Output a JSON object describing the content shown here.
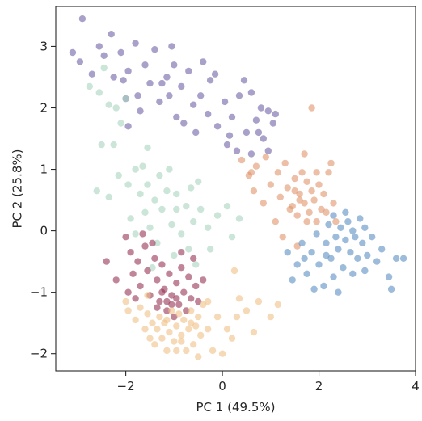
{
  "chart_data": {
    "type": "scatter",
    "title": "",
    "xlabel": "PC 1 (49.5%)",
    "ylabel": "PC 2 (25.8%)",
    "xlim": [
      -3.45,
      4.0
    ],
    "ylim": [
      -2.28,
      3.65
    ],
    "xticks": [
      -2,
      0,
      2,
      4
    ],
    "yticks": [
      -2,
      -1,
      0,
      1,
      2,
      3
    ],
    "xtick_labels": [
      "−2",
      "0",
      "2",
      "4"
    ],
    "ytick_labels": [
      "−2",
      "−1",
      "0",
      "1",
      "2",
      "3"
    ],
    "grid": false,
    "legend": "none",
    "marker_opacity": 0.6,
    "series": [
      {
        "color": "#6f62a6",
        "points": [
          [
            -2.9,
            3.45
          ],
          [
            -3.1,
            2.9
          ],
          [
            -2.95,
            2.75
          ],
          [
            -2.7,
            2.55
          ],
          [
            -2.45,
            2.85
          ],
          [
            -2.3,
            3.2
          ],
          [
            -2.25,
            2.5
          ],
          [
            -2.1,
            2.9
          ],
          [
            -2.05,
            2.45
          ],
          [
            -1.95,
            2.6
          ],
          [
            -1.8,
            3.05
          ],
          [
            -1.75,
            2.2
          ],
          [
            -1.6,
            2.7
          ],
          [
            -1.5,
            2.4
          ],
          [
            -1.4,
            2.95
          ],
          [
            -1.3,
            2.1
          ],
          [
            -1.15,
            2.5
          ],
          [
            -1.05,
            3.0
          ],
          [
            -1.1,
            2.2
          ],
          [
            -0.95,
            1.85
          ],
          [
            -0.85,
            2.35
          ],
          [
            -0.7,
            2.6
          ],
          [
            -0.6,
            2.05
          ],
          [
            -0.55,
            1.6
          ],
          [
            -0.45,
            2.2
          ],
          [
            -0.3,
            1.9
          ],
          [
            -0.25,
            2.45
          ],
          [
            -0.1,
            1.7
          ],
          [
            0.05,
            2.1
          ],
          [
            0.1,
            1.4
          ],
          [
            0.2,
            1.85
          ],
          [
            0.3,
            1.3
          ],
          [
            0.45,
            2.45
          ],
          [
            0.5,
            1.6
          ],
          [
            0.6,
            1.25
          ],
          [
            0.7,
            1.8
          ],
          [
            0.8,
            2.0
          ],
          [
            0.85,
            1.5
          ],
          [
            0.95,
            1.3
          ],
          [
            1.05,
            1.75
          ],
          [
            1.1,
            1.9
          ],
          [
            0.6,
            2.25
          ],
          [
            -2.55,
            3.0
          ],
          [
            -1.25,
            2.4
          ],
          [
            -0.15,
            2.55
          ],
          [
            0.35,
            2.2
          ],
          [
            0.75,
            1.6
          ],
          [
            -1.7,
            1.95
          ],
          [
            0.15,
            1.55
          ],
          [
            -0.8,
            1.75
          ],
          [
            -1.0,
            2.7
          ],
          [
            -2.0,
            2.15
          ],
          [
            -0.4,
            2.75
          ],
          [
            0.95,
            1.95
          ],
          [
            -1.95,
            1.7
          ]
        ]
      },
      {
        "color": "#e0946b",
        "points": [
          [
            0.4,
            1.15
          ],
          [
            0.55,
            0.9
          ],
          [
            0.7,
            1.05
          ],
          [
            0.9,
            1.2
          ],
          [
            1.0,
            0.75
          ],
          [
            1.15,
            0.95
          ],
          [
            1.2,
            0.55
          ],
          [
            1.3,
            1.1
          ],
          [
            1.35,
            0.7
          ],
          [
            1.45,
            0.4
          ],
          [
            1.5,
            0.85
          ],
          [
            1.55,
            0.25
          ],
          [
            1.6,
            0.6
          ],
          [
            1.7,
            0.45
          ],
          [
            1.75,
            0.8
          ],
          [
            1.8,
            0.3
          ],
          [
            1.85,
            0.65
          ],
          [
            1.9,
            0.5
          ],
          [
            1.95,
            0.15
          ],
          [
            2.0,
            0.75
          ],
          [
            2.05,
            0.35
          ],
          [
            2.1,
            0.6
          ],
          [
            2.2,
            0.95
          ],
          [
            2.3,
            0.45
          ],
          [
            2.35,
            0.15
          ],
          [
            1.65,
            0.95
          ],
          [
            1.4,
            0.35
          ],
          [
            1.1,
            0.15
          ],
          [
            0.65,
            0.65
          ],
          [
            0.85,
            0.45
          ],
          [
            1.25,
            -0.1
          ],
          [
            1.55,
            -0.25
          ],
          [
            1.85,
            2.0
          ],
          [
            1.7,
            1.25
          ],
          [
            2.25,
            1.1
          ],
          [
            0.6,
            0.95
          ],
          [
            1.95,
            0.95
          ],
          [
            1.6,
            0.5
          ],
          [
            1.75,
            0.15
          ],
          [
            2.15,
            0.3
          ],
          [
            1.5,
            0.65
          ]
        ]
      },
      {
        "color": "#5b8ec2",
        "points": [
          [
            1.35,
            -0.35
          ],
          [
            1.55,
            -0.55
          ],
          [
            1.65,
            -0.2
          ],
          [
            1.75,
            -0.7
          ],
          [
            1.85,
            -0.35
          ],
          [
            1.95,
            -0.05
          ],
          [
            2.0,
            -0.55
          ],
          [
            2.1,
            -0.9
          ],
          [
            2.15,
            -0.2
          ],
          [
            2.2,
            0.1
          ],
          [
            2.25,
            -0.45
          ],
          [
            2.3,
            0.25
          ],
          [
            2.35,
            -0.1
          ],
          [
            2.4,
            -0.3
          ],
          [
            2.45,
            0.05
          ],
          [
            2.5,
            -0.6
          ],
          [
            2.55,
            -0.15
          ],
          [
            2.6,
            0.15
          ],
          [
            2.65,
            -0.35
          ],
          [
            2.7,
            0.0
          ],
          [
            2.75,
            -0.1
          ],
          [
            2.8,
            -0.45
          ],
          [
            2.85,
            0.2
          ],
          [
            2.9,
            -0.2
          ],
          [
            2.95,
            0.05
          ],
          [
            3.0,
            -0.4
          ],
          [
            3.1,
            -0.1
          ],
          [
            3.2,
            -0.5
          ],
          [
            3.3,
            -0.3
          ],
          [
            3.45,
            -0.75
          ],
          [
            3.6,
            -0.45
          ],
          [
            3.75,
            -0.45
          ],
          [
            3.5,
            -0.95
          ],
          [
            2.4,
            -1.0
          ],
          [
            1.9,
            -0.95
          ],
          [
            1.45,
            -0.8
          ],
          [
            2.55,
            0.3
          ],
          [
            2.3,
            -0.75
          ],
          [
            2.7,
            -0.7
          ],
          [
            2.95,
            -0.65
          ],
          [
            2.15,
            -0.4
          ],
          [
            1.7,
            -0.45
          ]
        ]
      },
      {
        "color": "#a9d3c0",
        "points": [
          [
            -2.45,
            2.65
          ],
          [
            -2.75,
            2.35
          ],
          [
            -2.55,
            2.25
          ],
          [
            -2.2,
            2.0
          ],
          [
            -2.1,
            1.75
          ],
          [
            -2.5,
            1.4
          ],
          [
            -2.6,
            0.65
          ],
          [
            -2.35,
            0.55
          ],
          [
            -2.15,
            0.9
          ],
          [
            -1.95,
            0.75
          ],
          [
            -1.8,
            1.0
          ],
          [
            -1.7,
            0.6
          ],
          [
            -1.6,
            0.3
          ],
          [
            -1.55,
            0.75
          ],
          [
            -1.5,
            0.05
          ],
          [
            -1.4,
            0.5
          ],
          [
            -1.35,
            -0.2
          ],
          [
            -1.25,
            0.35
          ],
          [
            -1.15,
            0.65
          ],
          [
            -1.05,
            0.1
          ],
          [
            -0.95,
            0.35
          ],
          [
            -0.85,
            -0.05
          ],
          [
            -0.75,
            0.4
          ],
          [
            -0.7,
            -0.3
          ],
          [
            -0.6,
            0.15
          ],
          [
            -0.55,
            -0.55
          ],
          [
            -0.45,
            0.35
          ],
          [
            -0.3,
            0.05
          ],
          [
            -0.25,
            -0.3
          ],
          [
            -0.1,
            0.25
          ],
          [
            0.1,
            0.4
          ],
          [
            0.2,
            -0.1
          ],
          [
            0.35,
            0.2
          ],
          [
            -1.1,
            1.0
          ],
          [
            -1.8,
            -0.05
          ],
          [
            -1.9,
            0.2
          ],
          [
            -2.25,
            1.4
          ],
          [
            -1.3,
            0.9
          ],
          [
            -0.65,
            0.7
          ],
          [
            -1.45,
            -0.6
          ],
          [
            -1.65,
            1.05
          ],
          [
            -2.0,
            2.15
          ],
          [
            -2.35,
            2.05
          ],
          [
            -0.5,
            0.8
          ],
          [
            -1.0,
            -0.4
          ],
          [
            -1.55,
            1.35
          ],
          [
            -0.95,
            0.6
          ]
        ]
      },
      {
        "color": "#973456",
        "points": [
          [
            -2.0,
            -0.1
          ],
          [
            -1.9,
            -0.35
          ],
          [
            -1.85,
            -0.7
          ],
          [
            -1.75,
            -0.5
          ],
          [
            -1.7,
            -0.9
          ],
          [
            -1.6,
            -0.25
          ],
          [
            -1.55,
            -0.65
          ],
          [
            -1.5,
            -1.05
          ],
          [
            -1.4,
            -0.45
          ],
          [
            -1.35,
            -0.8
          ],
          [
            -1.3,
            -1.15
          ],
          [
            -1.25,
            -0.55
          ],
          [
            -1.2,
            -0.95
          ],
          [
            -1.15,
            -1.3
          ],
          [
            -1.1,
            -0.7
          ],
          [
            -1.05,
            -1.05
          ],
          [
            -1.0,
            -1.4
          ],
          [
            -0.95,
            -0.85
          ],
          [
            -0.9,
            -1.2
          ],
          [
            -0.85,
            -0.6
          ],
          [
            -0.8,
            -1.0
          ],
          [
            -0.75,
            -1.3
          ],
          [
            -0.7,
            -0.75
          ],
          [
            -0.65,
            -1.1
          ],
          [
            -0.6,
            -0.45
          ],
          [
            -0.55,
            -0.9
          ],
          [
            -2.4,
            -0.5
          ],
          [
            -2.2,
            -0.8
          ],
          [
            -1.95,
            -1.0
          ],
          [
            -1.45,
            -0.2
          ],
          [
            -1.25,
            -1.0
          ],
          [
            -1.05,
            -1.2
          ],
          [
            -0.95,
            -1.1
          ],
          [
            -1.15,
            -1.15
          ],
          [
            -0.5,
            -1.15
          ],
          [
            -1.65,
            -0.05
          ],
          [
            -1.8,
            -1.1
          ],
          [
            -0.4,
            -0.8
          ],
          [
            -1.35,
            -1.25
          ],
          [
            -0.85,
            -0.35
          ]
        ]
      },
      {
        "color": "#f0c187",
        "points": [
          [
            -2.0,
            -1.15
          ],
          [
            -1.95,
            -1.3
          ],
          [
            -1.8,
            -1.45
          ],
          [
            -1.7,
            -1.25
          ],
          [
            -1.6,
            -1.6
          ],
          [
            -1.55,
            -1.35
          ],
          [
            -1.5,
            -1.75
          ],
          [
            -1.45,
            -1.5
          ],
          [
            -1.4,
            -1.85
          ],
          [
            -1.35,
            -1.6
          ],
          [
            -1.3,
            -1.4
          ],
          [
            -1.25,
            -1.75
          ],
          [
            -1.2,
            -1.5
          ],
          [
            -1.15,
            -1.95
          ],
          [
            -1.1,
            -1.65
          ],
          [
            -1.05,
            -1.3
          ],
          [
            -1.0,
            -1.8
          ],
          [
            -0.95,
            -1.55
          ],
          [
            -0.9,
            -1.35
          ],
          [
            -0.85,
            -1.7
          ],
          [
            -0.8,
            -1.45
          ],
          [
            -0.75,
            -1.95
          ],
          [
            -0.7,
            -1.6
          ],
          [
            -0.65,
            -1.3
          ],
          [
            -0.6,
            -1.85
          ],
          [
            -0.55,
            -1.55
          ],
          [
            -0.5,
            -1.4
          ],
          [
            -0.45,
            -1.7
          ],
          [
            -0.4,
            -1.2
          ],
          [
            -0.3,
            -1.6
          ],
          [
            -0.2,
            -1.95
          ],
          [
            -0.1,
            -1.4
          ],
          [
            0.0,
            -2.0
          ],
          [
            0.1,
            -1.6
          ],
          [
            0.2,
            -1.75
          ],
          [
            0.3,
            -1.4
          ],
          [
            0.35,
            -1.1
          ],
          [
            0.5,
            -1.3
          ],
          [
            0.75,
            -1.15
          ],
          [
            1.0,
            -1.4
          ],
          [
            1.15,
            -1.2
          ],
          [
            0.25,
            -0.65
          ],
          [
            -0.5,
            -2.05
          ],
          [
            -0.85,
            -1.8
          ],
          [
            -1.15,
            -1.45
          ],
          [
            -0.65,
            -1.5
          ],
          [
            -0.95,
            -1.95
          ],
          [
            0.65,
            -1.65
          ],
          [
            -1.55,
            -1.05
          ],
          [
            -0.3,
            -1.15
          ]
        ]
      }
    ]
  }
}
